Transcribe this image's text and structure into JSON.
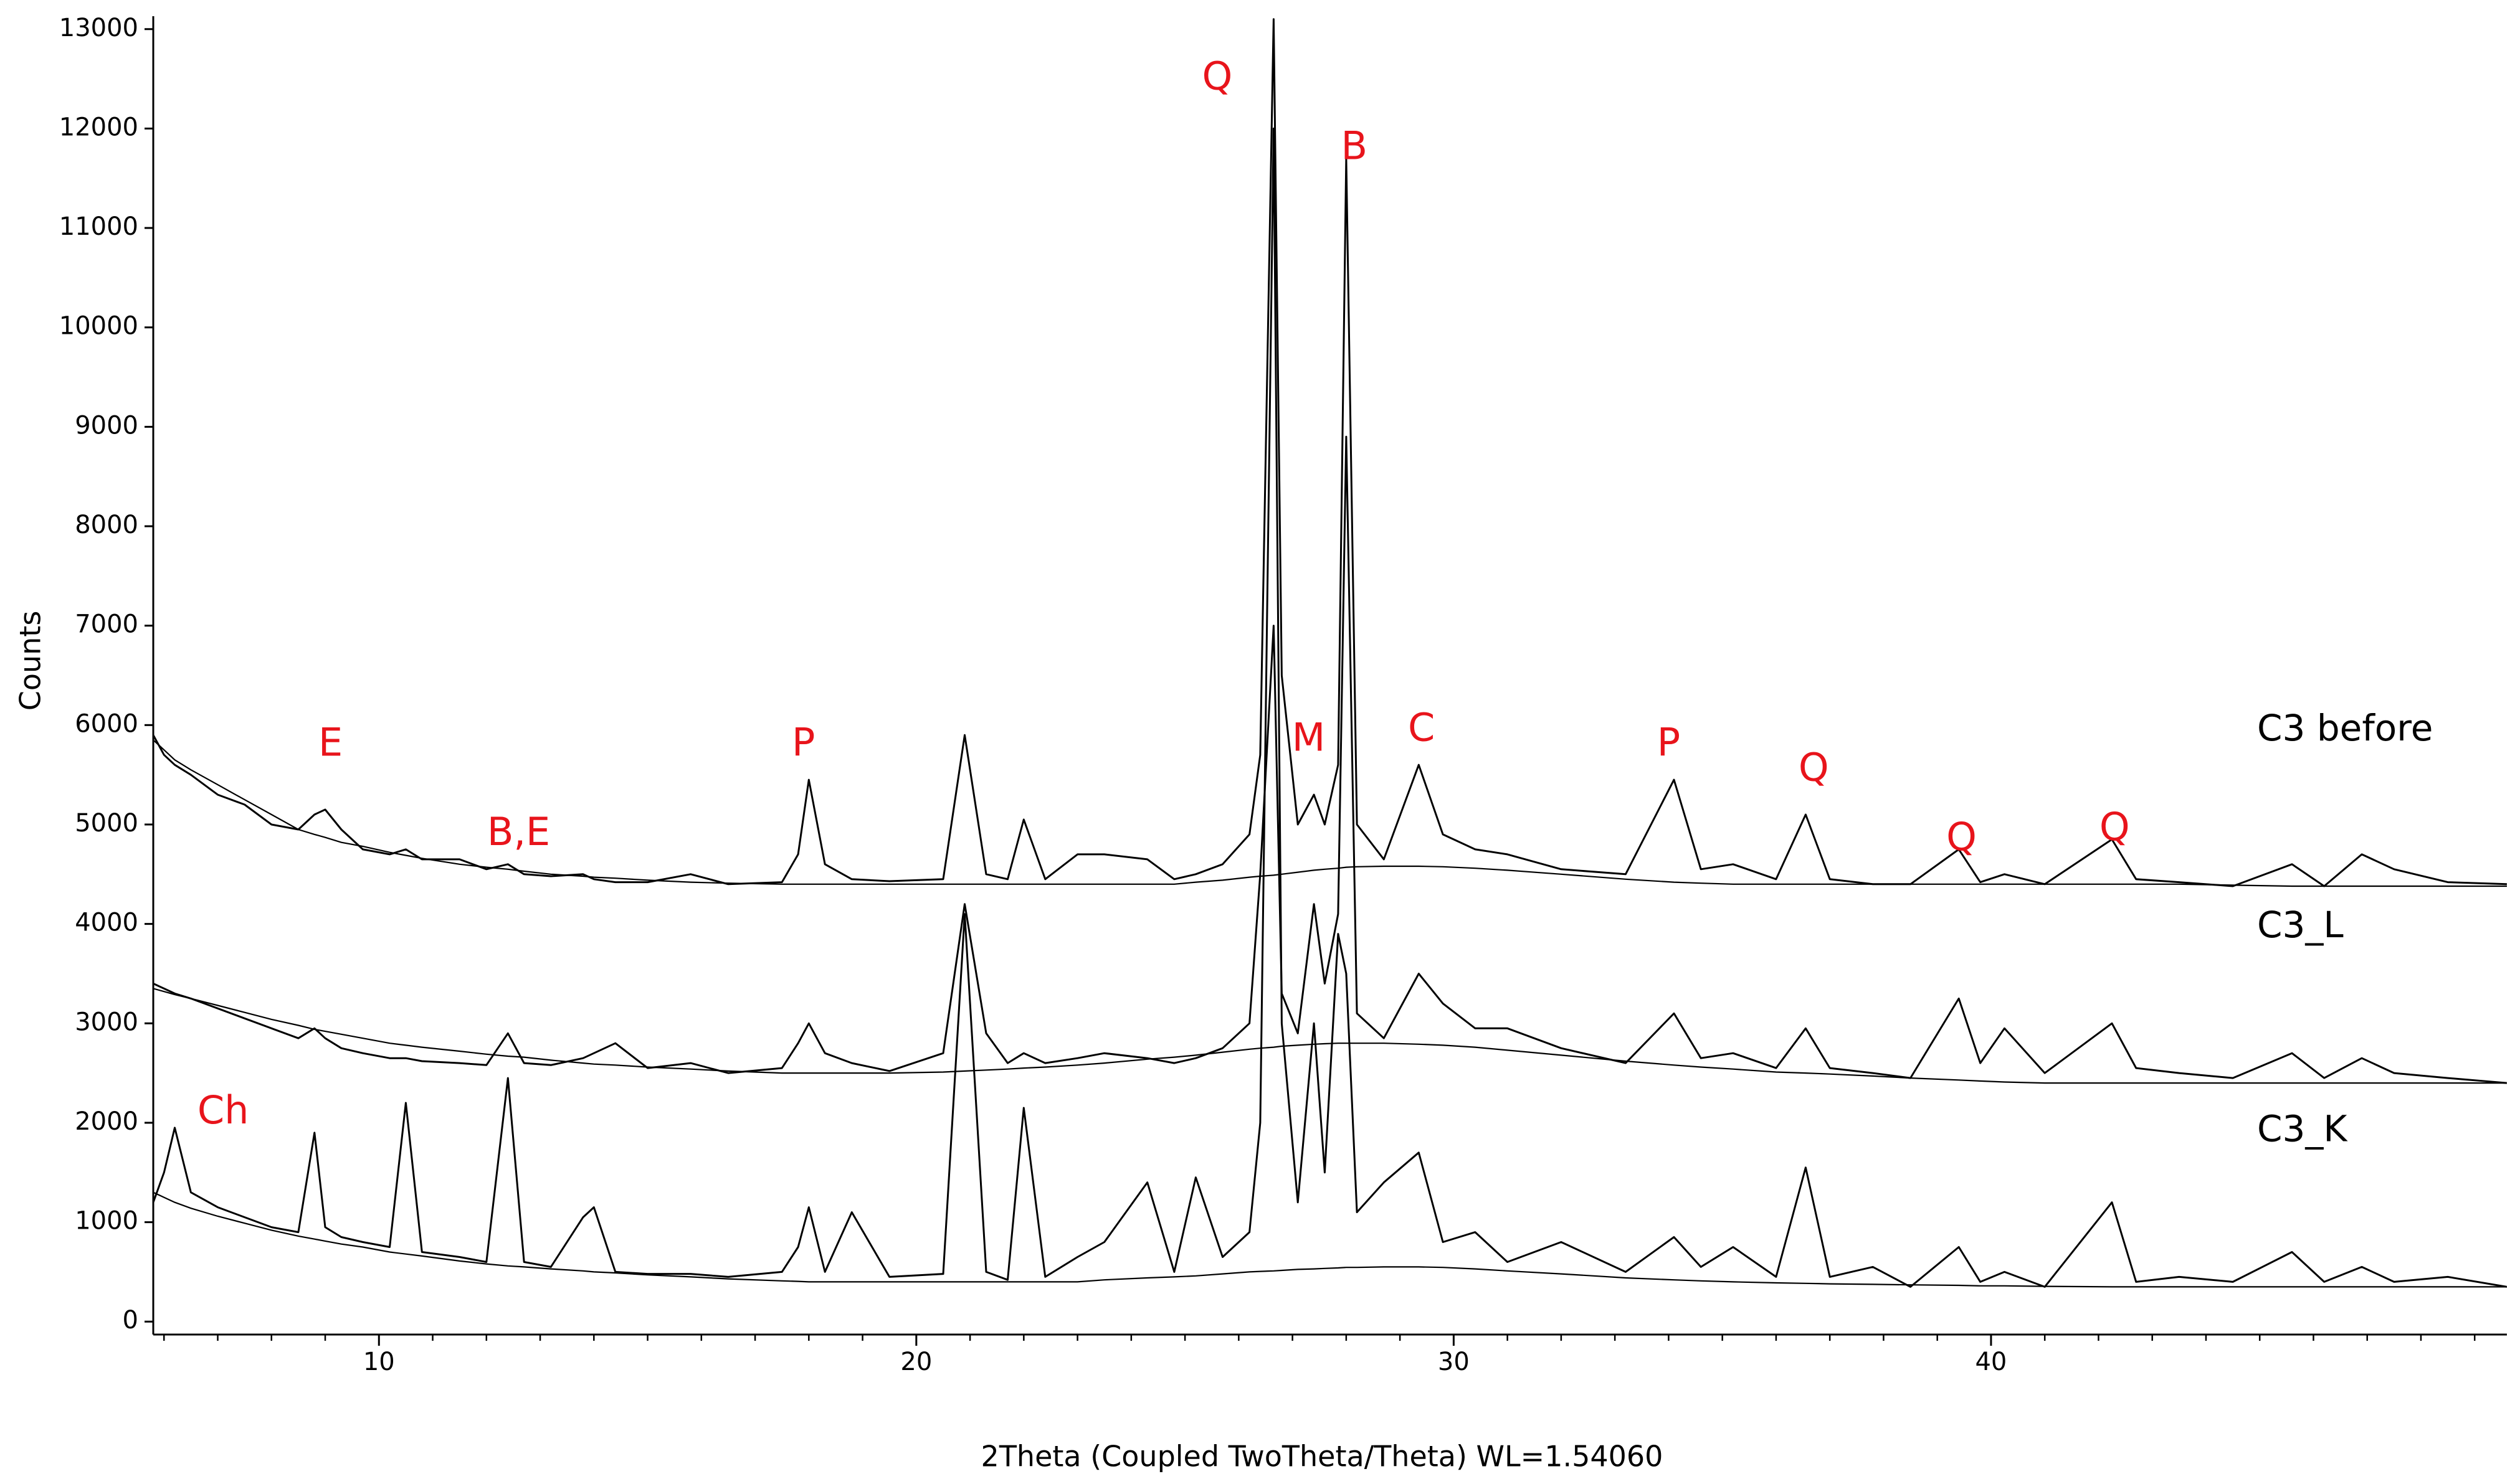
{
  "chart_data": {
    "type": "line",
    "x_label": "2Theta (Coupled TwoTheta/Theta) WL=1.54060",
    "y_label": "Counts",
    "xlim": [
      5.8,
      49.6
    ],
    "ylim": [
      -130,
      13130
    ],
    "xticks": [
      10,
      20,
      30,
      40
    ],
    "xminorticks": [
      6,
      7,
      8,
      9,
      11,
      12,
      13,
      14,
      15,
      16,
      17,
      18,
      19,
      21,
      22,
      23,
      24,
      25,
      26,
      27,
      28,
      29,
      31,
      32,
      33,
      34,
      35,
      36,
      37,
      38,
      39,
      41,
      42,
      43,
      44,
      45,
      46,
      47,
      48,
      49
    ],
    "yticks": [
      0,
      1000,
      2000,
      3000,
      4000,
      5000,
      6000,
      7000,
      8000,
      9000,
      10000,
      11000,
      12000,
      13000
    ],
    "grid": false,
    "x": [
      5.8,
      6.0,
      6.2,
      6.5,
      7,
      7.5,
      8,
      8.5,
      8.8,
      9.0,
      9.3,
      9.7,
      10.2,
      10.5,
      10.8,
      11.5,
      12.0,
      12.4,
      12.7,
      13.2,
      13.8,
      14.0,
      14.4,
      15,
      15.8,
      16.5,
      17.5,
      17.8,
      18.0,
      18.3,
      18.8,
      19.5,
      20.5,
      20.9,
      21.3,
      21.7,
      22.0,
      22.4,
      23.0,
      23.5,
      24.3,
      24.8,
      25.2,
      25.7,
      26.2,
      26.4,
      26.65,
      26.8,
      27.1,
      27.4,
      27.6,
      27.85,
      28.0,
      28.2,
      28.7,
      29.35,
      29.8,
      30.4,
      31,
      32,
      33.2,
      34.1,
      34.6,
      35.2,
      36.0,
      36.55,
      37,
      37.8,
      38.5,
      39.4,
      39.8,
      40.25,
      41,
      42.25,
      42.7,
      43.5,
      44.5,
      45.6,
      46.2,
      46.9,
      47.5,
      48.5,
      49.6
    ],
    "series": [
      {
        "name": "C3 before",
        "color": "#000000",
        "values": [
          5900,
          5700,
          5600,
          5500,
          5300,
          5200,
          5000,
          4950,
          5100,
          5150,
          4950,
          4750,
          4700,
          4750,
          4650,
          4650,
          4550,
          4600,
          4500,
          4480,
          4500,
          4450,
          4420,
          4420,
          4500,
          4400,
          4420,
          4700,
          5450,
          4600,
          4450,
          4430,
          4450,
          5900,
          4500,
          4450,
          5050,
          4450,
          4700,
          4700,
          4650,
          4450,
          4500,
          4600,
          4900,
          5700,
          13100,
          6500,
          5000,
          5300,
          5000,
          5600,
          11700,
          5000,
          4650,
          5600,
          4900,
          4750,
          4700,
          4550,
          4500,
          5450,
          4550,
          4600,
          4450,
          5100,
          4450,
          4400,
          4400,
          4750,
          4420,
          4500,
          4400,
          4850,
          4450,
          4420,
          4380,
          4600,
          4380,
          4700,
          4550,
          4420,
          4400
        ],
        "background": [
          5850,
          5750,
          5650,
          5550,
          5400,
          5250,
          5100,
          4950,
          4900,
          4870,
          4820,
          4780,
          4720,
          4690,
          4660,
          4600,
          4570,
          4550,
          4530,
          4500,
          4480,
          4470,
          4460,
          4440,
          4420,
          4410,
          4400,
          4400,
          4400,
          4400,
          4400,
          4400,
          4400,
          4400,
          4400,
          4400,
          4400,
          4400,
          4400,
          4400,
          4400,
          4400,
          4420,
          4440,
          4470,
          4480,
          4490,
          4500,
          4520,
          4540,
          4550,
          4560,
          4570,
          4575,
          4580,
          4580,
          4575,
          4560,
          4540,
          4500,
          4450,
          4420,
          4410,
          4400,
          4400,
          4400,
          4400,
          4400,
          4400,
          4400,
          4400,
          4400,
          4400,
          4400,
          4400,
          4400,
          4390,
          4380,
          4380,
          4380,
          4380,
          4380,
          4380
        ]
      },
      {
        "name": "C3_L",
        "color": "#000000",
        "values": [
          3400,
          3350,
          3300,
          3250,
          3150,
          3050,
          2950,
          2850,
          2950,
          2850,
          2750,
          2700,
          2650,
          2650,
          2620,
          2600,
          2580,
          2900,
          2600,
          2580,
          2650,
          2700,
          2800,
          2550,
          2600,
          2500,
          2550,
          2800,
          3000,
          2700,
          2600,
          2520,
          2700,
          4200,
          2900,
          2600,
          2700,
          2600,
          2650,
          2700,
          2650,
          2600,
          2650,
          2750,
          3000,
          4500,
          7000,
          3300,
          2900,
          4200,
          3400,
          4100,
          8900,
          3100,
          2850,
          3500,
          3200,
          2950,
          2950,
          2750,
          2600,
          3100,
          2650,
          2700,
          2550,
          2950,
          2550,
          2500,
          2450,
          3250,
          2600,
          2950,
          2500,
          3000,
          2550,
          2500,
          2450,
          2700,
          2450,
          2650,
          2500,
          2450,
          2400
        ],
        "background": [
          3350,
          3320,
          3290,
          3250,
          3180,
          3110,
          3040,
          2980,
          2940,
          2920,
          2890,
          2850,
          2800,
          2780,
          2760,
          2720,
          2690,
          2670,
          2660,
          2630,
          2600,
          2590,
          2580,
          2560,
          2540,
          2520,
          2500,
          2500,
          2500,
          2500,
          2500,
          2500,
          2510,
          2520,
          2530,
          2540,
          2550,
          2560,
          2580,
          2600,
          2640,
          2660,
          2680,
          2710,
          2740,
          2750,
          2760,
          2770,
          2780,
          2790,
          2795,
          2800,
          2800,
          2800,
          2800,
          2790,
          2780,
          2760,
          2730,
          2680,
          2620,
          2580,
          2560,
          2540,
          2510,
          2500,
          2490,
          2470,
          2450,
          2430,
          2420,
          2410,
          2400,
          2400,
          2400,
          2400,
          2400,
          2400,
          2400,
          2400,
          2400,
          2400,
          2400
        ]
      },
      {
        "name": "C3_K",
        "color": "#000000",
        "values": [
          1200,
          1500,
          1950,
          1300,
          1150,
          1050,
          950,
          900,
          1900,
          950,
          850,
          800,
          750,
          2200,
          700,
          650,
          600,
          2450,
          600,
          550,
          1050,
          1150,
          500,
          480,
          480,
          450,
          500,
          750,
          1150,
          500,
          1100,
          450,
          480,
          4100,
          500,
          420,
          2150,
          450,
          650,
          800,
          1400,
          500,
          1450,
          650,
          900,
          2000,
          12000,
          3000,
          1200,
          3000,
          1500,
          3900,
          3500,
          1100,
          1400,
          1700,
          800,
          900,
          600,
          800,
          500,
          850,
          550,
          750,
          450,
          1550,
          450,
          550,
          350,
          750,
          400,
          500,
          350,
          1200,
          400,
          450,
          400,
          700,
          400,
          550,
          400,
          450,
          350
        ],
        "background": [
          1300,
          1250,
          1200,
          1140,
          1060,
          990,
          920,
          860,
          830,
          810,
          780,
          750,
          700,
          680,
          660,
          610,
          580,
          560,
          550,
          530,
          510,
          500,
          490,
          470,
          450,
          430,
          410,
          405,
          400,
          400,
          400,
          400,
          400,
          400,
          400,
          400,
          400,
          400,
          400,
          420,
          440,
          450,
          460,
          480,
          500,
          505,
          510,
          515,
          525,
          530,
          535,
          540,
          545,
          545,
          550,
          550,
          545,
          530,
          510,
          480,
          440,
          420,
          410,
          400,
          390,
          385,
          380,
          375,
          370,
          365,
          360,
          360,
          355,
          350,
          350,
          350,
          350,
          350,
          350,
          350,
          350,
          350,
          350
        ]
      }
    ],
    "annotations": [
      {
        "text": "Q",
        "x": 25.6,
        "y": 12500
      },
      {
        "text": "B",
        "x": 28.15,
        "y": 11800
      },
      {
        "text": "E",
        "x": 9.1,
        "y": 5800
      },
      {
        "text": "B,E",
        "x": 12.6,
        "y": 4900
      },
      {
        "text": "P",
        "x": 17.9,
        "y": 5800
      },
      {
        "text": "M",
        "x": 27.3,
        "y": 5850
      },
      {
        "text": "C",
        "x": 29.4,
        "y": 5950
      },
      {
        "text": "P",
        "x": 34.0,
        "y": 5800
      },
      {
        "text": "Q",
        "x": 36.7,
        "y": 5550
      },
      {
        "text": "Q",
        "x": 39.45,
        "y": 4850
      },
      {
        "text": "Q",
        "x": 42.3,
        "y": 4950
      },
      {
        "text": "Ch",
        "x": 7.1,
        "y": 2100
      }
    ]
  }
}
